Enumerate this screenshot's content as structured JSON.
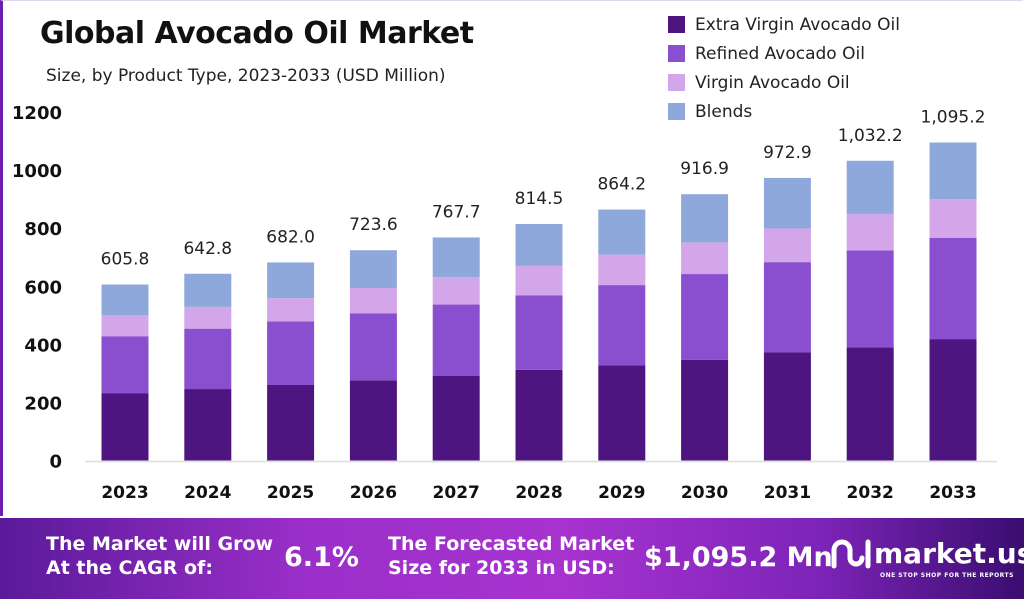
{
  "chart_data": {
    "type": "bar",
    "stacked": true,
    "title": "Global Avocado Oil Market",
    "subtitle": "Size, by Product Type, 2023-2033 (USD Million)",
    "categories": [
      "2023",
      "2024",
      "2025",
      "2026",
      "2027",
      "2028",
      "2029",
      "2030",
      "2031",
      "2032",
      "2033"
    ],
    "totals": [
      "605.8",
      "642.8",
      "682.0",
      "723.6",
      "767.7",
      "814.5",
      "864.2",
      "916.9",
      "972.9",
      "1,032.2",
      "1,095.2"
    ],
    "series": [
      {
        "name": "Extra Virgin Avocado Oil",
        "color": "#4e1580",
        "values": [
          232,
          246,
          260,
          276,
          291,
          312,
          327,
          347,
          372,
          390,
          418
        ]
      },
      {
        "name": "Refined Avocado Oil",
        "color": "#8a4fcf",
        "values": [
          196,
          208,
          219,
          231,
          246,
          257,
          277,
          295,
          311,
          333,
          349
        ]
      },
      {
        "name": "Virgin Avocado Oil",
        "color": "#d3a6ea",
        "values": [
          73,
          75,
          80,
          87,
          94,
          101,
          105,
          109,
          116,
          126,
          133
        ]
      },
      {
        "name": "Blends",
        "color": "#8fa8dc",
        "values": [
          105,
          114,
          123,
          130,
          137,
          144.5,
          155,
          166,
          174,
          183,
          195
        ]
      }
    ],
    "yticks": [
      "0",
      "200",
      "400",
      "600",
      "800",
      "1000",
      "1200"
    ],
    "ylim": [
      0,
      1200
    ],
    "grid": false,
    "legend": "top-right"
  },
  "banner": {
    "cagr_text_1": "The Market will Grow",
    "cagr_text_2": "At the CAGR of:",
    "cagr_value": "6.1%",
    "forecast_text_1": "The Forecasted Market",
    "forecast_text_2": "Size for 2033 in USD:",
    "forecast_value": "$1,095.2 Mn",
    "logo_name": "market.us",
    "logo_tagline": "ONE STOP SHOP FOR THE REPORTS"
  }
}
